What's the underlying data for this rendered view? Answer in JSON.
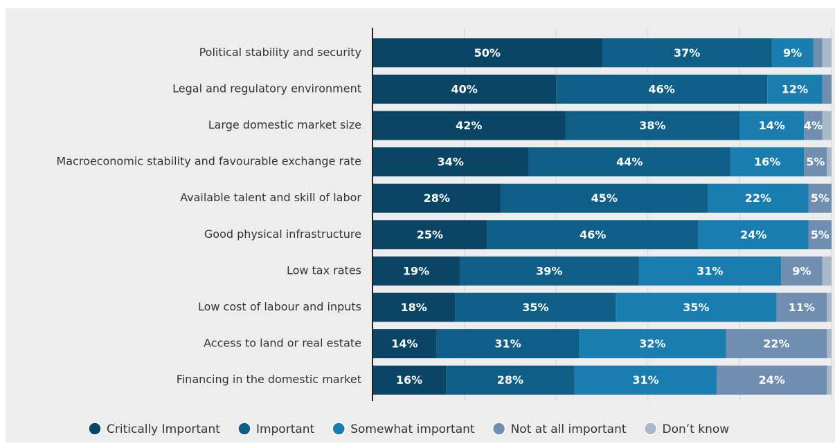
{
  "chart_data": {
    "type": "stacked-bar-horizontal",
    "categories": [
      "Political stability and security",
      "Legal and regulatory environment",
      "Large domestic market size",
      "Macroeconomic stability and favourable exchange rate",
      "Available talent and skill of labor",
      "Good physical infrastructure",
      "Low tax rates",
      "Low cost of labour and inputs",
      "Access to land or real estate",
      "Financing in the domestic market"
    ],
    "series": [
      {
        "name": "Critically Important",
        "color": "#0b4566",
        "values": [
          50,
          40,
          42,
          34,
          28,
          25,
          19,
          18,
          14,
          16
        ],
        "value_labels": [
          "50%",
          "40%",
          "42%",
          "34%",
          "28%",
          "25%",
          "19%",
          "18%",
          "14%",
          "16%"
        ]
      },
      {
        "name": "Important",
        "color": "#0e5e88",
        "values": [
          37,
          46,
          38,
          44,
          45,
          46,
          39,
          35,
          31,
          28
        ],
        "value_labels": [
          "37%",
          "46%",
          "38%",
          "44%",
          "45%",
          "46%",
          "39%",
          "35%",
          "31%",
          "28%"
        ]
      },
      {
        "name": "Somewhat important",
        "color": "#1a7db0",
        "values": [
          9,
          12,
          14,
          16,
          22,
          24,
          31,
          35,
          32,
          31
        ],
        "value_labels": [
          "9%",
          "12%",
          "14%",
          "16%",
          "22%",
          "24%",
          "31%",
          "35%",
          "32%",
          "31%"
        ]
      },
      {
        "name": "Not at all important",
        "color": "#6f8eb0",
        "values": [
          2,
          2,
          4,
          5,
          5,
          5,
          9,
          11,
          22,
          24
        ],
        "value_labels": [
          null,
          null,
          "4%",
          "5%",
          "5%",
          "5%",
          "9%",
          "11%",
          "22%",
          "24%"
        ]
      },
      {
        "name": "Don’t know",
        "color": "#aab9ca",
        "values": [
          2,
          0,
          2,
          1,
          0,
          0,
          2,
          1,
          1,
          1
        ],
        "value_labels": [
          null,
          null,
          null,
          null,
          null,
          null,
          null,
          null,
          null,
          null
        ]
      }
    ],
    "xlim": [
      0,
      100
    ],
    "xticks": [
      0,
      20,
      40,
      60,
      80,
      100
    ],
    "grid": true
  }
}
